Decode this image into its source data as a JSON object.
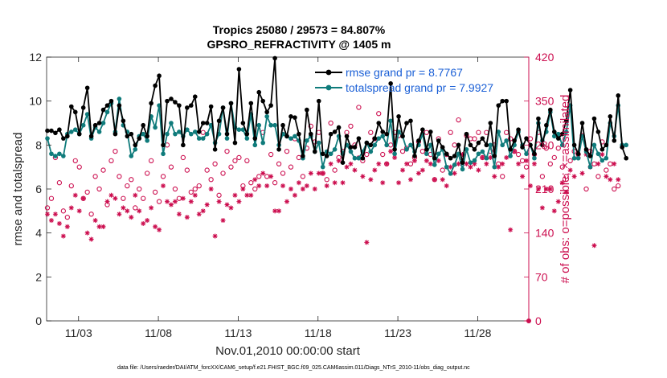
{
  "chart_data": {
    "type": "line",
    "title_line1": "Tropics 25080 / 29573 = 84.807%",
    "title_line2": "GPSRO_REFRACTIVITY @ 1405 m",
    "xlabel": "Nov.01,2010 00:00:00 start",
    "ylabel_left": "rmse and totalspread",
    "ylabel_right": "# of obs: o=possible; ×=assimilated",
    "xlim": [
      1,
      31.2
    ],
    "ylim_left": [
      0,
      12
    ],
    "ylim_right": [
      0,
      420
    ],
    "x_ticks": [
      {
        "value": 3,
        "label": "11/03"
      },
      {
        "value": 8,
        "label": "11/08"
      },
      {
        "value": 13,
        "label": "11/13"
      },
      {
        "value": 18,
        "label": "11/18"
      },
      {
        "value": 23,
        "label": "11/23"
      },
      {
        "value": 28,
        "label": "11/28"
      }
    ],
    "y_ticks_left": [
      0,
      2,
      4,
      6,
      8,
      10,
      12
    ],
    "y_ticks_right": [
      0,
      70,
      140,
      210,
      280,
      350,
      420
    ],
    "x_start": 1.05,
    "x_step": 0.25,
    "series": [
      {
        "name": "rmse grand pr = 8.7767",
        "color": "#000000",
        "marker": "dot",
        "values": [
          8.65,
          8.65,
          8.55,
          8.7,
          8.3,
          8.4,
          9.75,
          9.5,
          8.5,
          9.7,
          10.6,
          8.4,
          8.9,
          9.0,
          9.6,
          9.8,
          10.0,
          8.5,
          9.8,
          9.1,
          8.4,
          8.5,
          8.0,
          8.3,
          8.9,
          8.4,
          9.9,
          10.7,
          11.15,
          8.0,
          10.0,
          10.1,
          9.95,
          9.8,
          8.0,
          9.7,
          9.8,
          10.2,
          8.6,
          9.0,
          9.0,
          9.75,
          7.8,
          9.1,
          9.7,
          8.5,
          9.9,
          8.1,
          11.45,
          9.0,
          8.5,
          9.9,
          8.3,
          10.4,
          10.0,
          9.5,
          9.8,
          11.95,
          7.8,
          8.9,
          8.4,
          9.3,
          9.25,
          8.5,
          7.5,
          9.6,
          8.5,
          7.7,
          10.0,
          7.6,
          7.5,
          8.5,
          8.6,
          8.8,
          7.2,
          8.4,
          7.9,
          7.9,
          8.3,
          7.4,
          8.1,
          8.0,
          8.3,
          9.0,
          8.6,
          8.5,
          10.8,
          7.8,
          9.3,
          8.4,
          9.0,
          9.1,
          7.5,
          8.2,
          8.7,
          7.8,
          8.6,
          7.4,
          8.2,
          7.9,
          7.6,
          7.4,
          7.5,
          8.0,
          7.2,
          8.5,
          8.0,
          7.8,
          8.1,
          8.3,
          8.0,
          9.0,
          7.5,
          9.8,
          10.0,
          10.0,
          7.8,
          8.2,
          8.7,
          7.9,
          8.3,
          8.0,
          7.6,
          9.2,
          8.0,
          8.9,
          9.6,
          8.6,
          8.3,
          8.5,
          9.1,
          10.5,
          8.0,
          7.6,
          9.0,
          7.8,
          7.5,
          9.2,
          8.6,
          7.8,
          8.0,
          9.3,
          8.2,
          10.25,
          7.9,
          7.4
        ]
      },
      {
        "name": "totalspread grand pr = 7.9927",
        "color": "#0f7b7b",
        "marker": "dot",
        "values": [
          8.3,
          7.6,
          7.5,
          7.6,
          7.5,
          8.5,
          8.6,
          8.7,
          8.5,
          8.9,
          9.4,
          8.3,
          8.8,
          8.6,
          9.0,
          9.5,
          9.9,
          8.6,
          10.1,
          8.9,
          8.6,
          7.5,
          7.8,
          8.4,
          8.5,
          8.2,
          9.3,
          8.8,
          9.8,
          7.6,
          8.5,
          9.0,
          8.5,
          8.6,
          8.4,
          8.7,
          8.5,
          8.6,
          8.3,
          8.3,
          8.5,
          8.9,
          8.1,
          8.5,
          9.7,
          8.3,
          9.9,
          8.8,
          8.7,
          8.7,
          8.3,
          9.4,
          8.0,
          8.9,
          8.1,
          9.3,
          8.9,
          8.9,
          8.0,
          8.5,
          8.4,
          8.3,
          8.4,
          8.2,
          7.4,
          8.2,
          8.4,
          7.7,
          8.1,
          7.0,
          7.7,
          7.6,
          7.8,
          8.4,
          7.6,
          8.0,
          7.7,
          7.4,
          7.4,
          7.7,
          8.1,
          7.7,
          8.0,
          8.3,
          8.4,
          8.0,
          9.1,
          7.6,
          8.6,
          8.4,
          7.8,
          8.0,
          7.7,
          8.0,
          8.5,
          7.6,
          8.0,
          7.1,
          7.6,
          7.8,
          7.0,
          6.7,
          7.1,
          7.6,
          6.9,
          7.8,
          7.2,
          7.3,
          7.6,
          7.7,
          7.4,
          8.0,
          7.0,
          8.6,
          8.0,
          8.2,
          7.5,
          8.0,
          8.6,
          8.0,
          7.6,
          8.0,
          7.4,
          9.0,
          8.2,
          8.6,
          9.5,
          8.4,
          8.5,
          8.0,
          8.6,
          9.8,
          7.4,
          7.4,
          8.4,
          7.7,
          7.0,
          8.0,
          7.6,
          7.3,
          7.4,
          9.0,
          8.4,
          9.8,
          8.0,
          8.0
        ]
      },
      {
        "name": "possible",
        "color": "#cc0e4f",
        "marker": "circle",
        "axis": "right",
        "values": [
          180,
          195,
          260,
          220,
          175,
          165,
          215,
          255,
          245,
          195,
          205,
          170,
          230,
          210,
          240,
          185,
          255,
          270,
          230,
          195,
          215,
          225,
          180,
          210,
          195,
          235,
          255,
          205,
          190,
          230,
          280,
          245,
          210,
          195,
          260,
          240,
          205,
          210,
          215,
          300,
          240,
          225,
          250,
          200,
          235,
          270,
          245,
          255,
          260,
          215,
          255,
          220,
          210,
          230,
          300,
          230,
          265,
          220,
          250,
          235,
          270,
          245,
          290,
          260,
          230,
          275,
          310,
          285,
          300,
          235,
          225,
          315,
          240,
          260,
          270,
          300,
          310,
          280,
          340,
          255,
          265,
          300,
          290,
          330,
          265,
          250,
          280,
          300,
          295,
          270,
          275,
          250,
          260,
          285,
          270,
          300,
          265,
          225,
          290,
          240,
          265,
          300,
          280,
          320,
          255,
          295,
          290,
          290,
          300,
          260,
          300,
          270,
          280,
          250,
          230,
          300,
          290,
          270,
          265,
          255,
          245,
          290,
          265,
          300,
          230,
          275,
          250,
          260,
          275,
          245,
          230,
          255,
          270,
          265,
          295,
          210,
          270,
          250,
          230,
          285,
          240,
          250,
          210,
          215
        ]
      },
      {
        "name": "assimilated",
        "color": "#cc0e4f",
        "marker": "star",
        "axis": "right",
        "values": [
          170,
          160,
          170,
          155,
          135,
          150,
          180,
          200,
          175,
          195,
          140,
          130,
          160,
          150,
          150,
          190,
          200,
          195,
          170,
          180,
          175,
          165,
          200,
          175,
          155,
          160,
          180,
          150,
          145,
          215,
          190,
          185,
          190,
          170,
          195,
          165,
          190,
          200,
          170,
          175,
          185,
          210,
          135,
          190,
          160,
          185,
          180,
          200,
          190,
          210,
          200,
          200,
          225,
          215,
          235,
          215,
          230,
          175,
          175,
          215,
          190,
          210,
          200,
          220,
          210,
          215,
          235,
          210,
          235,
          235,
          215,
          250,
          220,
          255,
          220,
          245,
          250,
          240,
          260,
          230,
          125,
          225,
          240,
          250,
          220,
          250,
          270,
          260,
          220,
          240,
          250,
          225,
          255,
          235,
          240,
          255,
          250,
          225,
          255,
          225,
          215,
          245,
          235,
          250,
          265,
          250,
          245,
          250,
          240,
          260,
          250,
          260,
          230,
          245,
          250,
          260,
          145,
          270,
          250,
          230,
          255,
          215,
          250,
          210,
          180,
          210,
          210,
          175,
          190,
          220,
          205,
          240,
          230,
          260,
          235,
          265,
          245,
          120,
          250,
          265,
          230,
          225,
          250,
          225
        ]
      }
    ],
    "legend": [
      {
        "label": "rmse grand pr = 8.7767",
        "color": "#000000"
      },
      {
        "label": "totalspread grand pr = 7.9927",
        "color": "#0f7b7b"
      }
    ],
    "footer": "data file: /Users/raeder/DAI/ATM_forcXX/CAM6_setup/f.e21.FHIST_BGC.f09_025.CAM6assim.011/Diags_NTrS_2010-11/obs_diag_output.nc"
  }
}
